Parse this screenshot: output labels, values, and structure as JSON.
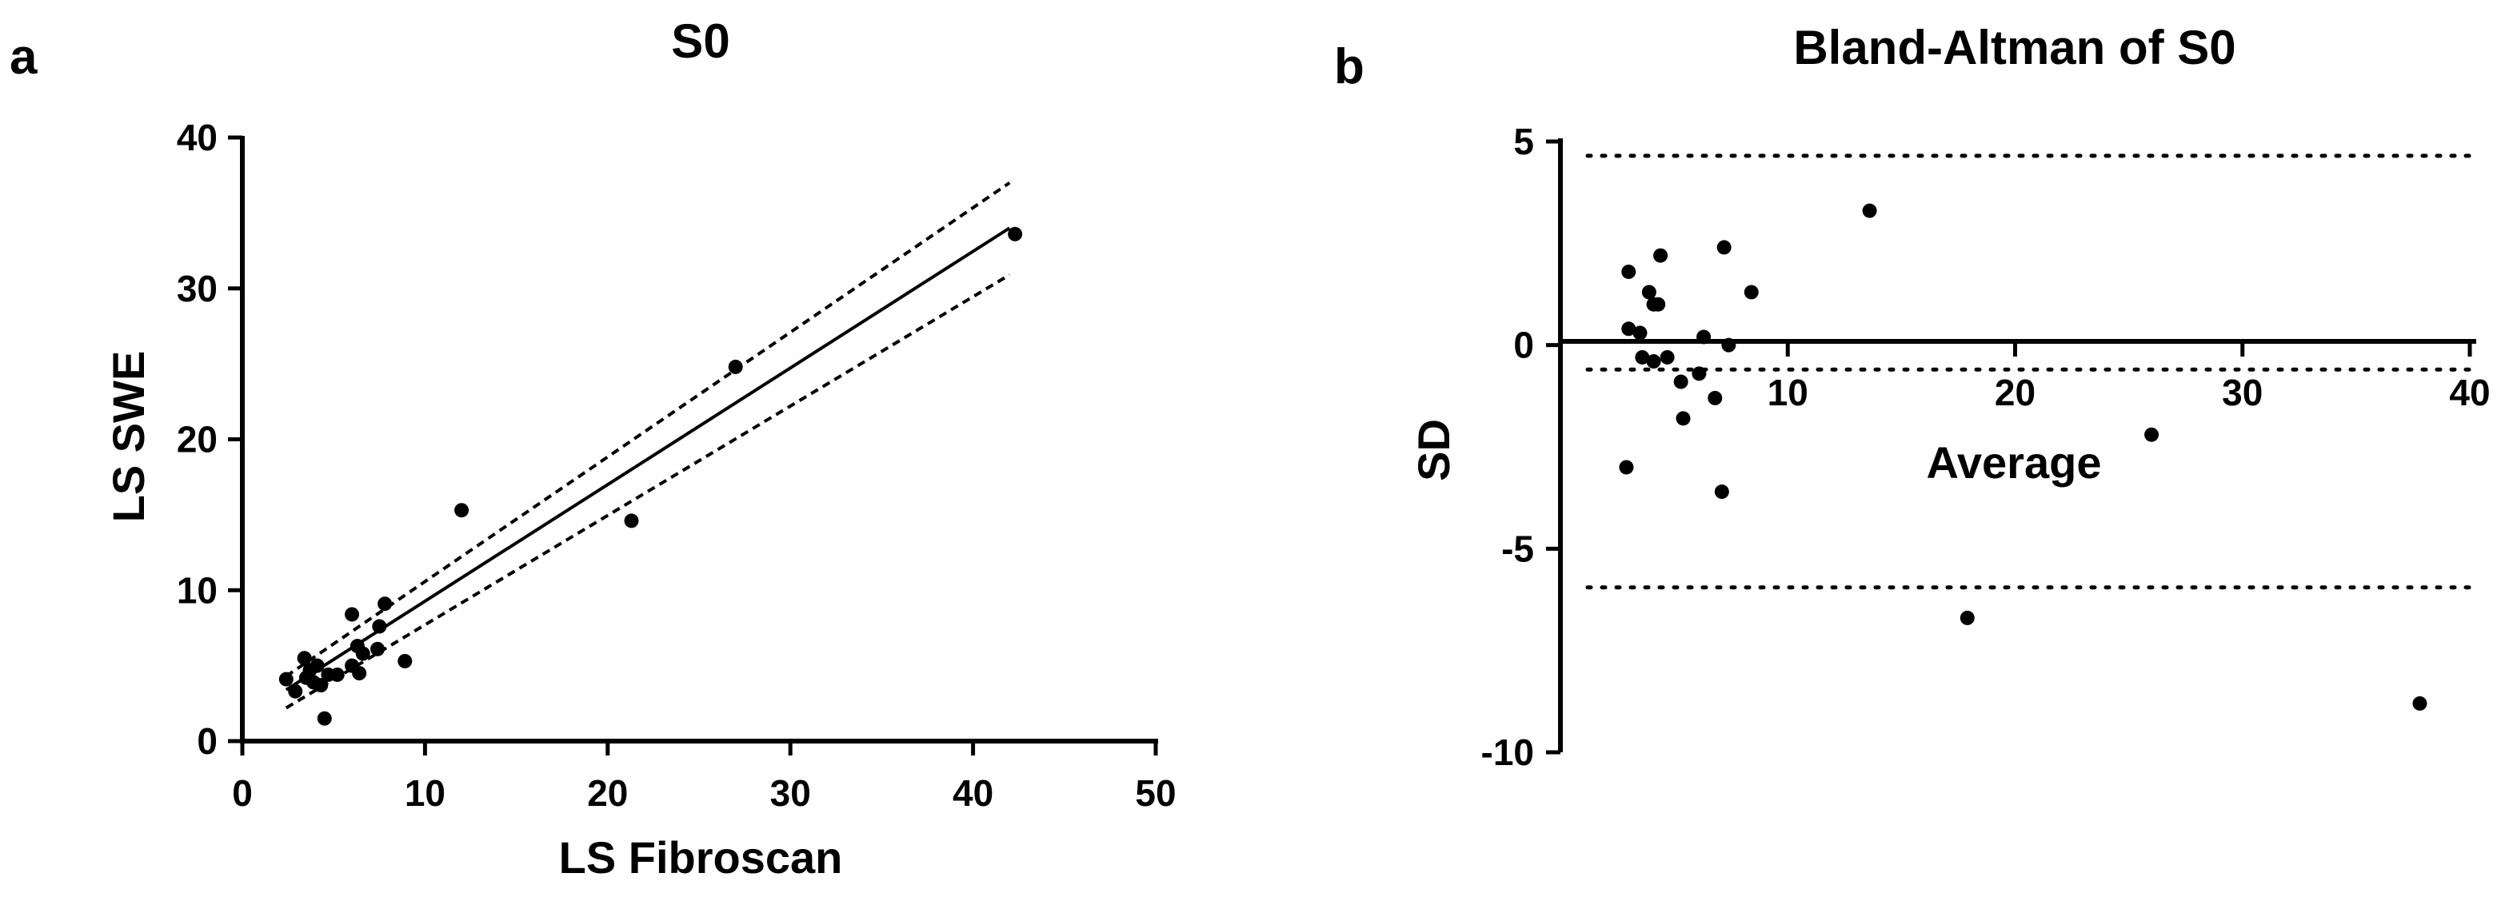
{
  "chart_data": [
    {
      "panel_label": "a",
      "type": "scatter",
      "title": "S0",
      "xlabel": "LS Fibroscan",
      "ylabel": "LS SWE",
      "xlim": [
        0,
        50
      ],
      "ylim": [
        0,
        40
      ],
      "xticks": [
        0,
        10,
        20,
        30,
        40,
        50
      ],
      "yticks": [
        0,
        10,
        20,
        30,
        40
      ],
      "grid": false,
      "points": [
        {
          "x": 2.4,
          "y": 4.1
        },
        {
          "x": 2.9,
          "y": 3.3
        },
        {
          "x": 3.4,
          "y": 5.5
        },
        {
          "x": 3.5,
          "y": 4.2
        },
        {
          "x": 3.7,
          "y": 4.7
        },
        {
          "x": 3.9,
          "y": 3.9
        },
        {
          "x": 4.1,
          "y": 5.0
        },
        {
          "x": 4.3,
          "y": 3.7
        },
        {
          "x": 4.5,
          "y": 1.5
        },
        {
          "x": 4.7,
          "y": 4.4
        },
        {
          "x": 5.2,
          "y": 4.4
        },
        {
          "x": 6.0,
          "y": 8.4
        },
        {
          "x": 6.0,
          "y": 5.0
        },
        {
          "x": 6.3,
          "y": 6.3
        },
        {
          "x": 6.4,
          "y": 4.5
        },
        {
          "x": 6.6,
          "y": 5.8
        },
        {
          "x": 7.4,
          "y": 6.1
        },
        {
          "x": 7.5,
          "y": 7.6
        },
        {
          "x": 7.8,
          "y": 9.1
        },
        {
          "x": 8.9,
          "y": 5.3
        },
        {
          "x": 12.0,
          "y": 15.3
        },
        {
          "x": 21.3,
          "y": 14.6
        },
        {
          "x": 27.0,
          "y": 24.8
        },
        {
          "x": 42.3,
          "y": 33.6
        }
      ],
      "fit_line": {
        "x": [
          2.4,
          42.0
        ],
        "y": [
          3.4,
          34.0
        ]
      },
      "ci_upper": {
        "x": [
          2.4,
          42.0
        ],
        "y": [
          4.3,
          37.0
        ]
      },
      "ci_lower": {
        "x": [
          2.4,
          42.0
        ],
        "y": [
          2.2,
          30.9
        ]
      }
    },
    {
      "panel_label": "b",
      "type": "scatter",
      "title": "Bland-Altman of S0",
      "xlabel": "Average",
      "ylabel": "SD",
      "xlim": [
        0,
        40
      ],
      "ylim": [
        -10,
        5
      ],
      "xticks": [
        10,
        20,
        30,
        40
      ],
      "yticks": [
        -10,
        -5,
        0,
        5
      ],
      "grid": false,
      "points": [
        {
          "x": 3.0,
          "y": 1.8
        },
        {
          "x": 3.0,
          "y": 0.4
        },
        {
          "x": 3.5,
          "y": 0.3
        },
        {
          "x": 3.6,
          "y": -0.3
        },
        {
          "x": 3.9,
          "y": 1.3
        },
        {
          "x": 4.1,
          "y": 1.0
        },
        {
          "x": 4.1,
          "y": -0.4
        },
        {
          "x": 4.3,
          "y": 1.0
        },
        {
          "x": 4.4,
          "y": 2.2
        },
        {
          "x": 4.7,
          "y": -0.3
        },
        {
          "x": 5.3,
          "y": -0.9
        },
        {
          "x": 5.4,
          "y": -1.8
        },
        {
          "x": 6.1,
          "y": -0.7
        },
        {
          "x": 6.3,
          "y": 0.2
        },
        {
          "x": 6.8,
          "y": -1.3
        },
        {
          "x": 7.1,
          "y": -3.6
        },
        {
          "x": 7.2,
          "y": 2.4
        },
        {
          "x": 7.4,
          "y": 0.0
        },
        {
          "x": 8.4,
          "y": 1.3
        },
        {
          "x": 2.9,
          "y": -3.0
        },
        {
          "x": 13.6,
          "y": 3.3
        },
        {
          "x": 17.9,
          "y": -6.7
        },
        {
          "x": 26.0,
          "y": -2.2
        },
        {
          "x": 37.8,
          "y": -8.8
        }
      ],
      "reference_lines": [
        4.65,
        -0.6,
        -5.95
      ]
    }
  ]
}
